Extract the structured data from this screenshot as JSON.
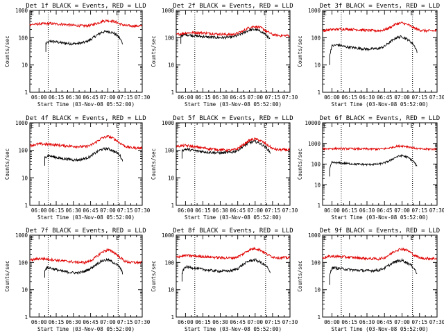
{
  "colors": {
    "events": "#000000",
    "lld": "#e00000",
    "axes": "#000000",
    "background": "#ffffff"
  },
  "x_tick_labels": [
    "06:00",
    "06:15",
    "06:30",
    "06:45",
    "07:00",
    "07:15",
    "07:30"
  ],
  "x_axis_label": "Start Time (03-Nov-08 05:52:00)",
  "y_axis_label": "Counts/sec",
  "flag_start": "E",
  "flag_end": "E",
  "chart_data": [
    {
      "type": "line",
      "title": "Det 1f BLACK = Events, RED = LLD",
      "xlabel": "Start Time (03-Nov-08 05:52:00)",
      "ylabel": "Counts/sec",
      "y_scale": "log",
      "ylim": [
        1,
        1000
      ],
      "y_ticks": [
        "1",
        "10",
        "100",
        "1000"
      ],
      "xlim": [
        "05:52",
        "07:30"
      ],
      "markers": [
        "06:08",
        "07:09"
      ],
      "series": [
        {
          "name": "Events",
          "color": "#000000",
          "x": [
            "06:06",
            "06:10",
            "06:15",
            "06:20",
            "06:25",
            "06:30",
            "06:35",
            "06:40",
            "06:45",
            "06:50",
            "06:55",
            "07:00",
            "07:05",
            "07:10",
            "07:13"
          ],
          "y": [
            60,
            75,
            70,
            65,
            62,
            60,
            62,
            68,
            85,
            120,
            160,
            170,
            150,
            100,
            60
          ]
        },
        {
          "name": "LLD",
          "color": "#e00000",
          "x": [
            "05:52",
            "06:00",
            "06:10",
            "06:20",
            "06:30",
            "06:40",
            "06:45",
            "06:50",
            "06:55",
            "07:00",
            "07:05",
            "07:10",
            "07:15",
            "07:20",
            "07:30"
          ],
          "y": [
            300,
            320,
            330,
            310,
            285,
            270,
            285,
            330,
            400,
            430,
            400,
            330,
            280,
            270,
            270
          ]
        }
      ]
    },
    {
      "type": "line",
      "title": "Det 2f BLACK = Events, RED = LLD",
      "xlabel": "Start Time (03-Nov-08 05:52:00)",
      "ylabel": "Counts/sec",
      "y_scale": "log",
      "ylim": [
        1,
        1000
      ],
      "y_ticks": [
        "1",
        "10",
        "100",
        "1000"
      ],
      "xlim": [
        "05:52",
        "07:30"
      ],
      "markers": [
        "06:08",
        "07:09"
      ],
      "series": [
        {
          "name": "Events",
          "color": "#000000",
          "x": [
            "05:56",
            "06:00",
            "06:10",
            "06:20",
            "06:30",
            "06:40",
            "06:45",
            "06:50",
            "06:55",
            "07:00",
            "07:05",
            "07:10",
            "07:13"
          ],
          "y": [
            120,
            130,
            115,
            105,
            100,
            105,
            120,
            150,
            190,
            200,
            170,
            120,
            80
          ]
        },
        {
          "name": "LLD",
          "color": "#e00000",
          "x": [
            "05:52",
            "06:00",
            "06:10",
            "06:20",
            "06:30",
            "06:40",
            "06:45",
            "06:50",
            "06:55",
            "07:00",
            "07:05",
            "07:10",
            "07:15",
            "07:20",
            "07:30"
          ],
          "y": [
            130,
            150,
            155,
            145,
            135,
            130,
            145,
            180,
            240,
            260,
            230,
            170,
            130,
            120,
            120
          ]
        }
      ]
    },
    {
      "type": "line",
      "title": "Det 3f BLACK = Events, RED = LLD",
      "xlabel": "Start Time (03-Nov-08 05:52:00)",
      "ylabel": "Counts/sec",
      "y_scale": "log",
      "ylim": [
        1,
        1000
      ],
      "y_ticks": [
        "1",
        "10",
        "100",
        "1000"
      ],
      "xlim": [
        "05:52",
        "07:30"
      ],
      "markers": [
        "06:08",
        "07:09"
      ],
      "series": [
        {
          "name": "Events",
          "color": "#000000",
          "x": [
            "05:58",
            "06:00",
            "06:05",
            "06:10",
            "06:20",
            "06:30",
            "06:40",
            "06:45",
            "06:50",
            "06:55",
            "07:00",
            "07:05",
            "07:10",
            "07:13"
          ],
          "y": [
            20,
            50,
            55,
            48,
            42,
            38,
            40,
            48,
            70,
            100,
            110,
            85,
            55,
            30
          ]
        },
        {
          "name": "LLD",
          "color": "#e00000",
          "x": [
            "05:52",
            "06:00",
            "06:10",
            "06:20",
            "06:30",
            "06:40",
            "06:45",
            "06:50",
            "06:55",
            "07:00",
            "07:05",
            "07:10",
            "07:15",
            "07:20",
            "07:30"
          ],
          "y": [
            180,
            200,
            210,
            200,
            185,
            180,
            195,
            240,
            320,
            350,
            300,
            230,
            190,
            180,
            180
          ]
        }
      ]
    },
    {
      "type": "line",
      "title": "Det 4f BLACK = Events, RED = LLD",
      "xlabel": "Start Time (03-Nov-08 05:52:00)",
      "ylabel": "Counts/sec",
      "y_scale": "log",
      "ylim": [
        1,
        1000
      ],
      "y_ticks": [
        "1",
        "10",
        "100",
        "1000"
      ],
      "xlim": [
        "05:52",
        "07:30"
      ],
      "markers": [
        "06:08",
        "07:09"
      ],
      "series": [
        {
          "name": "Events",
          "color": "#000000",
          "x": [
            "06:05",
            "06:08",
            "06:15",
            "06:20",
            "06:25",
            "06:30",
            "06:35",
            "06:40",
            "06:45",
            "06:50",
            "06:55",
            "07:00",
            "07:05",
            "07:10",
            "07:13"
          ],
          "y": [
            55,
            65,
            55,
            50,
            48,
            45,
            45,
            50,
            60,
            85,
            110,
            115,
            95,
            70,
            40
          ]
        },
        {
          "name": "LLD",
          "color": "#e00000",
          "x": [
            "05:52",
            "06:00",
            "06:10",
            "06:20",
            "06:30",
            "06:40",
            "06:45",
            "06:50",
            "06:55",
            "07:00",
            "07:05",
            "07:10",
            "07:15",
            "07:20",
            "07:30"
          ],
          "y": [
            150,
            170,
            165,
            150,
            140,
            135,
            150,
            200,
            280,
            320,
            270,
            190,
            140,
            125,
            120
          ]
        }
      ]
    },
    {
      "type": "line",
      "title": "Det 5f BLACK = Events, RED = LLD",
      "xlabel": "Start Time (03-Nov-08 05:52:00)",
      "ylabel": "Counts/sec",
      "y_scale": "log",
      "ylim": [
        1,
        1000
      ],
      "y_ticks": [
        "1",
        "10",
        "100",
        "1000"
      ],
      "xlim": [
        "05:52",
        "07:30"
      ],
      "markers": [
        "06:08",
        "07:09"
      ],
      "series": [
        {
          "name": "Events",
          "color": "#000000",
          "x": [
            "05:57",
            "06:00",
            "06:10",
            "06:20",
            "06:30",
            "06:40",
            "06:45",
            "06:50",
            "06:55",
            "07:00",
            "07:05",
            "07:10",
            "07:13"
          ],
          "y": [
            100,
            110,
            95,
            85,
            80,
            85,
            100,
            140,
            190,
            210,
            170,
            120,
            80
          ]
        },
        {
          "name": "LLD",
          "color": "#e00000",
          "x": [
            "05:52",
            "06:00",
            "06:10",
            "06:20",
            "06:30",
            "06:40",
            "06:45",
            "06:50",
            "06:55",
            "07:00",
            "07:05",
            "07:10",
            "07:15",
            "07:20",
            "07:30"
          ],
          "y": [
            140,
            150,
            130,
            115,
            105,
            100,
            115,
            160,
            230,
            260,
            220,
            160,
            115,
            105,
            105
          ]
        }
      ]
    },
    {
      "type": "line",
      "title": "Det 6f BLACK = Events, RED = LLD",
      "xlabel": "Start Time (03-Nov-08 05:52:00)",
      "ylabel": "Counts/sec",
      "y_scale": "log",
      "ylim": [
        1,
        10000
      ],
      "y_ticks": [
        "1",
        "10",
        "100",
        "1000",
        "10000"
      ],
      "xlim": [
        "05:52",
        "07:30"
      ],
      "markers": [
        "06:08",
        "07:09"
      ],
      "series": [
        {
          "name": "Events",
          "color": "#000000",
          "x": [
            "05:58",
            "06:00",
            "06:10",
            "06:20",
            "06:30",
            "06:40",
            "06:45",
            "06:50",
            "06:55",
            "07:00",
            "07:05",
            "07:10",
            "07:13"
          ],
          "y": [
            50,
            120,
            110,
            100,
            95,
            100,
            115,
            150,
            220,
            260,
            210,
            130,
            70
          ]
        },
        {
          "name": "LLD",
          "color": "#e00000",
          "x": [
            "05:52",
            "06:00",
            "06:10",
            "06:20",
            "06:30",
            "06:40",
            "06:45",
            "06:50",
            "06:55",
            "07:00",
            "07:05",
            "07:10",
            "07:15",
            "07:20",
            "07:30"
          ],
          "y": [
            550,
            560,
            560,
            550,
            540,
            530,
            550,
            620,
            720,
            760,
            700,
            600,
            540,
            530,
            530
          ]
        }
      ]
    },
    {
      "type": "line",
      "title": "Det 7f BLACK = Events, RED = LLD",
      "xlabel": "Start Time (03-Nov-08 05:52:00)",
      "ylabel": "Counts/sec",
      "y_scale": "log",
      "ylim": [
        1,
        1000
      ],
      "y_ticks": [
        "1",
        "10",
        "100",
        "1000"
      ],
      "xlim": [
        "05:52",
        "07:30"
      ],
      "markers": [
        "06:08",
        "07:09"
      ],
      "series": [
        {
          "name": "Events",
          "color": "#000000",
          "x": [
            "06:05",
            "06:08",
            "06:15",
            "06:20",
            "06:25",
            "06:30",
            "06:35",
            "06:40",
            "06:45",
            "06:50",
            "06:55",
            "07:00",
            "07:05",
            "07:10",
            "07:13"
          ],
          "y": [
            55,
            65,
            55,
            48,
            45,
            42,
            42,
            48,
            60,
            85,
            115,
            125,
            100,
            70,
            40
          ]
        },
        {
          "name": "LLD",
          "color": "#e00000",
          "x": [
            "05:52",
            "06:00",
            "06:10",
            "06:20",
            "06:30",
            "06:40",
            "06:45",
            "06:50",
            "06:55",
            "07:00",
            "07:05",
            "07:10",
            "07:15",
            "07:20",
            "07:30"
          ],
          "y": [
            120,
            140,
            130,
            115,
            105,
            100,
            115,
            160,
            240,
            290,
            240,
            160,
            110,
            100,
            100
          ]
        }
      ]
    },
    {
      "type": "line",
      "title": "Det 8f BLACK = Events, RED = LLD",
      "xlabel": "Start Time (03-Nov-08 05:52:00)",
      "ylabel": "Counts/sec",
      "y_scale": "log",
      "ylim": [
        1,
        1000
      ],
      "y_ticks": [
        "1",
        "10",
        "100",
        "1000"
      ],
      "xlim": [
        "05:52",
        "07:30"
      ],
      "markers": [
        "06:08",
        "07:09"
      ],
      "series": [
        {
          "name": "Events",
          "color": "#000000",
          "x": [
            "05:57",
            "06:00",
            "06:10",
            "06:20",
            "06:30",
            "06:40",
            "06:45",
            "06:50",
            "06:55",
            "07:00",
            "07:05",
            "07:10",
            "07:13"
          ],
          "y": [
            40,
            70,
            60,
            52,
            48,
            50,
            60,
            85,
            115,
            125,
            100,
            70,
            40
          ]
        },
        {
          "name": "LLD",
          "color": "#e00000",
          "x": [
            "05:52",
            "06:00",
            "06:10",
            "06:20",
            "06:30",
            "06:40",
            "06:45",
            "06:50",
            "06:55",
            "07:00",
            "07:05",
            "07:10",
            "07:15",
            "07:20",
            "07:30"
          ],
          "y": [
            160,
            180,
            170,
            160,
            150,
            145,
            160,
            210,
            290,
            330,
            280,
            200,
            160,
            150,
            150
          ]
        }
      ]
    },
    {
      "type": "line",
      "title": "Det 9f BLACK = Events, RED = LLD",
      "xlabel": "Start Time (03-Nov-08 05:52:00)",
      "ylabel": "Counts/sec",
      "y_scale": "log",
      "ylim": [
        1,
        1000
      ],
      "y_ticks": [
        "1",
        "10",
        "100",
        "1000"
      ],
      "xlim": [
        "05:52",
        "07:30"
      ],
      "markers": [
        "06:08",
        "07:09"
      ],
      "series": [
        {
          "name": "Events",
          "color": "#000000",
          "x": [
            "05:58",
            "06:00",
            "06:10",
            "06:20",
            "06:30",
            "06:40",
            "06:45",
            "06:50",
            "06:55",
            "07:00",
            "07:05",
            "07:10",
            "07:13"
          ],
          "y": [
            30,
            65,
            58,
            52,
            50,
            52,
            62,
            85,
            110,
            120,
            95,
            65,
            35
          ]
        },
        {
          "name": "LLD",
          "color": "#e00000",
          "x": [
            "05:52",
            "06:00",
            "06:10",
            "06:20",
            "06:30",
            "06:40",
            "06:45",
            "06:50",
            "06:55",
            "07:00",
            "07:05",
            "07:10",
            "07:15",
            "07:20",
            "07:30"
          ],
          "y": [
            150,
            170,
            160,
            150,
            140,
            135,
            150,
            200,
            280,
            320,
            270,
            190,
            150,
            140,
            140
          ]
        }
      ]
    }
  ]
}
